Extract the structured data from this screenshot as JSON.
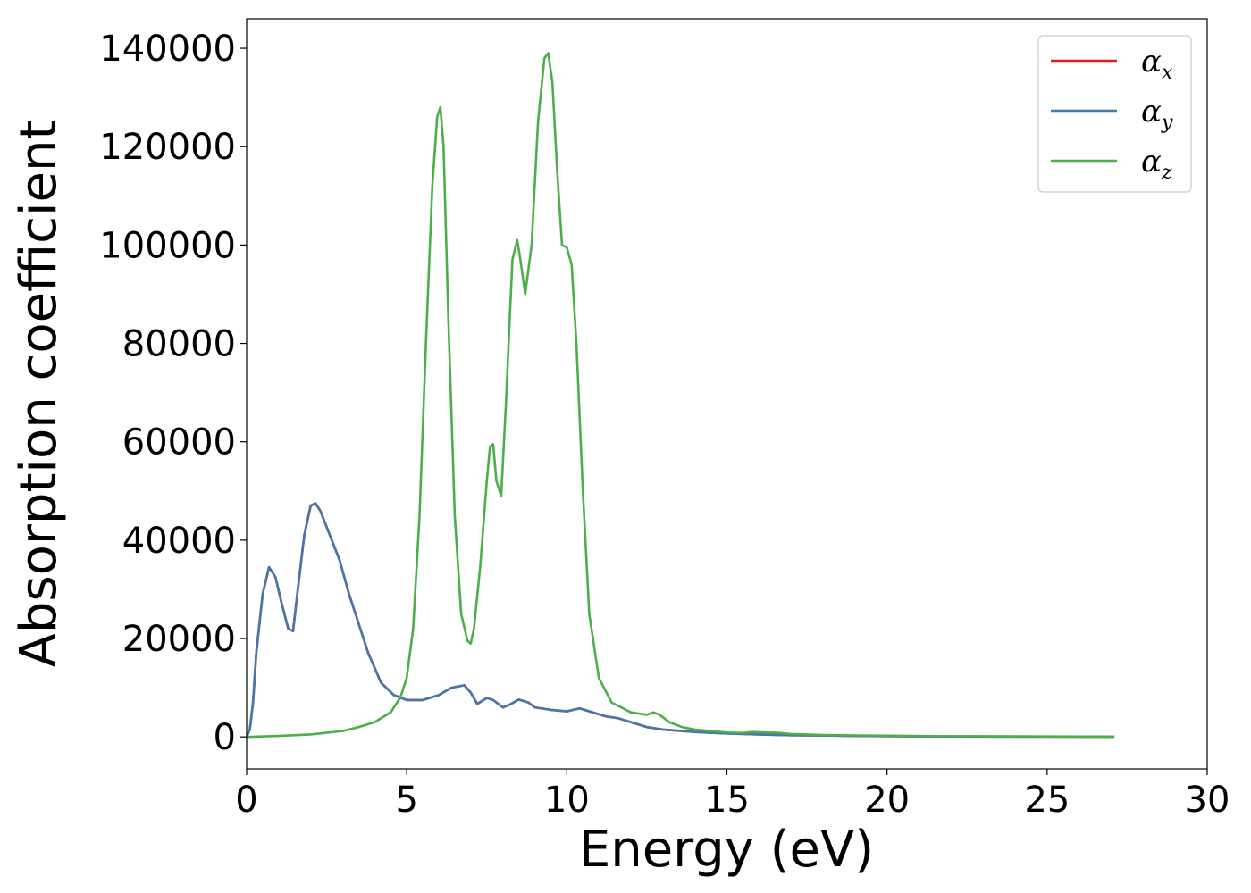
{
  "chart_data": {
    "type": "line",
    "title": "",
    "xlabel": "Energy (eV)",
    "ylabel": "Absorption coefficient",
    "xlim": [
      0,
      30
    ],
    "ylim": [
      -6500,
      146000
    ],
    "xticks": [
      0,
      5,
      10,
      15,
      20,
      25,
      30
    ],
    "yticks": [
      0,
      20000,
      40000,
      60000,
      80000,
      100000,
      120000,
      140000
    ],
    "xtick_labels": [
      "0",
      "5",
      "10",
      "15",
      "20",
      "25",
      "30"
    ],
    "ytick_labels": [
      "0",
      "20000",
      "40000",
      "60000",
      "80000",
      "100000",
      "120000",
      "140000"
    ],
    "grid": false,
    "legend_position": "top-right",
    "series": [
      {
        "name": "αx",
        "symbol": "α",
        "subscript": "x",
        "color": "#e41a1c",
        "x": [
          0,
          0.1,
          0.2,
          0.3,
          0.5,
          0.7,
          0.9,
          1.1,
          1.3,
          1.45,
          1.6,
          1.8,
          2.0,
          2.15,
          2.3,
          2.6,
          2.9,
          3.2,
          3.5,
          3.8,
          4.2,
          4.6,
          5.0,
          5.5,
          6.0,
          6.4,
          6.8,
          7.0,
          7.2,
          7.5,
          7.7,
          8.0,
          8.2,
          8.5,
          8.8,
          9.0,
          9.5,
          10.0,
          10.4,
          10.8,
          11.2,
          11.6,
          12.0,
          12.5,
          13.0,
          14.0,
          15.0,
          16.0,
          17.0,
          18.0,
          19.0,
          20.0,
          22.0,
          25.0,
          27.1
        ],
        "y": [
          0,
          1500,
          7000,
          17000,
          29000,
          34500,
          32500,
          27000,
          22000,
          21500,
          30000,
          41000,
          47000,
          47500,
          46000,
          41000,
          36000,
          29000,
          23000,
          17000,
          11000,
          8500,
          7500,
          7500,
          8500,
          10000,
          10500,
          9000,
          6700,
          7900,
          7500,
          6000,
          6500,
          7600,
          7000,
          6000,
          5500,
          5200,
          5800,
          5000,
          4200,
          3800,
          3000,
          2000,
          1500,
          1000,
          700,
          500,
          350,
          300,
          200,
          150,
          100,
          60,
          50
        ]
      },
      {
        "name": "αy",
        "symbol": "α",
        "subscript": "y",
        "color": "#4477aa",
        "x": [
          0,
          0.1,
          0.2,
          0.3,
          0.5,
          0.7,
          0.9,
          1.1,
          1.3,
          1.45,
          1.6,
          1.8,
          2.0,
          2.15,
          2.3,
          2.6,
          2.9,
          3.2,
          3.5,
          3.8,
          4.2,
          4.6,
          5.0,
          5.5,
          6.0,
          6.4,
          6.8,
          7.0,
          7.2,
          7.5,
          7.7,
          8.0,
          8.2,
          8.5,
          8.8,
          9.0,
          9.5,
          10.0,
          10.4,
          10.8,
          11.2,
          11.6,
          12.0,
          12.5,
          13.0,
          14.0,
          15.0,
          16.0,
          17.0,
          18.0,
          19.0,
          20.0,
          22.0,
          25.0,
          27.1
        ],
        "y": [
          0,
          1500,
          7000,
          17000,
          29000,
          34500,
          32500,
          27000,
          22000,
          21500,
          30000,
          41000,
          47000,
          47500,
          46000,
          41000,
          36000,
          29000,
          23000,
          17000,
          11000,
          8500,
          7500,
          7500,
          8500,
          10000,
          10500,
          9000,
          6700,
          7900,
          7500,
          6000,
          6500,
          7600,
          7000,
          6000,
          5500,
          5200,
          5800,
          5000,
          4200,
          3800,
          3000,
          2000,
          1500,
          1000,
          700,
          500,
          350,
          300,
          200,
          150,
          100,
          60,
          50
        ]
      },
      {
        "name": "αz",
        "symbol": "α",
        "subscript": "z",
        "color": "#4daf4a",
        "x": [
          0,
          1,
          2,
          3,
          3.5,
          4,
          4.5,
          4.8,
          5.0,
          5.2,
          5.4,
          5.6,
          5.8,
          5.95,
          6.05,
          6.15,
          6.3,
          6.5,
          6.7,
          6.9,
          7.0,
          7.1,
          7.3,
          7.5,
          7.6,
          7.7,
          7.8,
          7.95,
          8.1,
          8.3,
          8.45,
          8.55,
          8.7,
          8.9,
          9.1,
          9.3,
          9.42,
          9.55,
          9.7,
          9.85,
          10.0,
          10.15,
          10.3,
          10.5,
          10.7,
          11.0,
          11.4,
          12.0,
          12.5,
          12.7,
          12.9,
          13.2,
          13.6,
          14.0,
          14.5,
          15.0,
          15.5,
          15.8,
          16.2,
          16.6,
          17.0,
          17.5,
          18.0,
          18.5,
          19.0,
          20.0,
          22.0,
          25.0,
          27.1
        ],
        "y": [
          0,
          200,
          500,
          1200,
          2000,
          3000,
          5000,
          8000,
          12000,
          22000,
          45000,
          80000,
          112000,
          126000,
          128000,
          120000,
          85000,
          45000,
          25000,
          19500,
          19000,
          22000,
          35000,
          52000,
          59000,
          59500,
          52000,
          49000,
          68000,
          97000,
          101000,
          97000,
          90000,
          100000,
          125000,
          138000,
          139000,
          133000,
          115000,
          100000,
          99500,
          96000,
          80000,
          50000,
          25000,
          12000,
          7000,
          5000,
          4500,
          5000,
          4500,
          3000,
          2000,
          1500,
          1200,
          900,
          800,
          1000,
          900,
          850,
          600,
          500,
          400,
          350,
          300,
          250,
          150,
          100,
          50
        ]
      }
    ]
  }
}
